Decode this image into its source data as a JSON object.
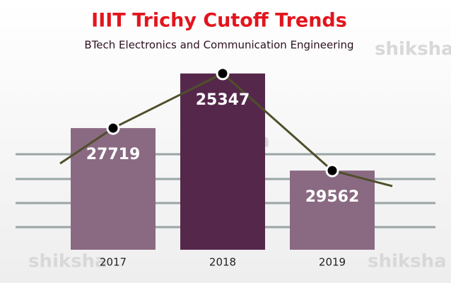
{
  "chart_data": {
    "type": "bar",
    "title": "IIIT Trichy Cutoff Trends",
    "subtitle": "BTech Electronics and Communication Engineering",
    "watermark": "shiksha",
    "categories": [
      "2017",
      "2018",
      "2019"
    ],
    "values": [
      27719,
      25347,
      29562
    ],
    "colors": [
      "#8a6a82",
      "#55284b",
      "#8a6a82"
    ],
    "line_color": "#4f4f2c",
    "ylim": [
      33000,
      24000
    ]
  }
}
